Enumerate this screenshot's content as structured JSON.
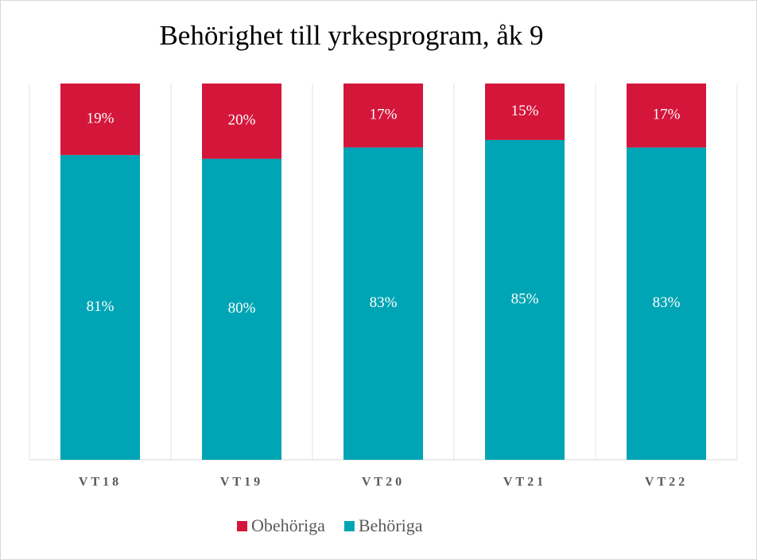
{
  "chart_data": {
    "type": "stacked_bar",
    "title": "Behörighet till yrkesprogram, åk 9",
    "categories": [
      "VT18",
      "VT19",
      "VT20",
      "VT21",
      "VT22"
    ],
    "series": [
      {
        "name": "Obehöriga",
        "color": "#d4163a",
        "values": [
          19,
          20,
          17,
          15,
          17
        ],
        "value_labels": [
          "19%",
          "20%",
          "17%",
          "15%",
          "17%"
        ]
      },
      {
        "name": "Behöriga",
        "color": "#00a5b5",
        "values": [
          81,
          80,
          83,
          85,
          83
        ],
        "value_labels": [
          "81%",
          "80%",
          "83%",
          "85%",
          "83%"
        ]
      }
    ],
    "ylim": [
      0,
      100
    ],
    "legend": "bottom"
  }
}
